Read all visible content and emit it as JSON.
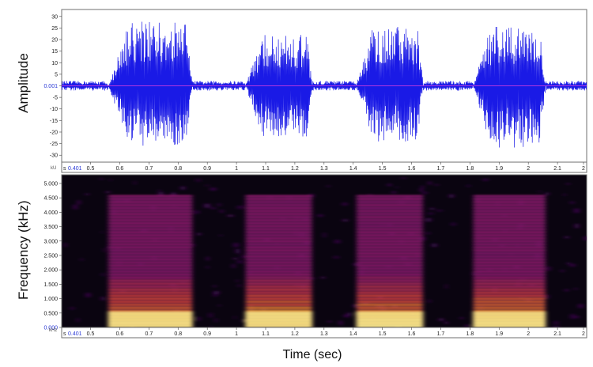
{
  "figure": {
    "top_ylabel": "Amplitude",
    "bottom_ylabel": "Frequency (kHz)",
    "xlabel": "Time (sec)",
    "top_unit": "kU",
    "bottom_unit": "kHz",
    "start_marker": "s",
    "start_time_label": "0.401"
  },
  "colors": {
    "waveform": "#1a1ae6",
    "baseline": "#e040e0",
    "frame": "#6f6f6f",
    "spectrogram_bg": "#0a0410"
  },
  "chart_data": [
    {
      "type": "line",
      "title": "",
      "ylabel": "Amplitude",
      "xlim": [
        0.401,
        2.2
      ],
      "ylim": [
        -33,
        33
      ],
      "x_ticks": [
        "0.5",
        "0.6",
        "0.7",
        "0.8",
        "0.9",
        "1",
        "1.1",
        "1.2",
        "1.3",
        "1.4",
        "1.5",
        "1.6",
        "1.7",
        "1.8",
        "1.9",
        "2",
        "2.1",
        "2"
      ],
      "y_ticks": [
        "30",
        "25",
        "20",
        "15",
        "10",
        "5",
        "0.001",
        "-5",
        "-10",
        "-15",
        "-20",
        "-25",
        "-30"
      ],
      "baseline_value": 0.001,
      "bursts": [
        {
          "start": 0.56,
          "end": 0.85,
          "peak_pos": 28,
          "peak_neg": -26
        },
        {
          "start": 1.03,
          "end": 1.26,
          "peak_pos": 22,
          "peak_neg": -22
        },
        {
          "start": 1.41,
          "end": 1.64,
          "peak_pos": 26,
          "peak_neg": -24
        },
        {
          "start": 1.81,
          "end": 2.06,
          "peak_pos": 26,
          "peak_neg": -27
        }
      ],
      "noise_level": 1.5
    },
    {
      "type": "heatmap",
      "title": "",
      "ylabel": "Frequency (kHz)",
      "xlim": [
        0.401,
        2.2
      ],
      "ylim": [
        0,
        5.3
      ],
      "x_ticks": [
        "0.5",
        "0.6",
        "0.7",
        "0.8",
        "0.9",
        "1",
        "1.1",
        "1.2",
        "1.3",
        "1.4",
        "1.5",
        "1.6",
        "1.7",
        "1.8",
        "1.9",
        "2",
        "2.1",
        "2"
      ],
      "y_ticks": [
        "5.000",
        "4.500",
        "4.000",
        "3.500",
        "3.000",
        "2.500",
        "2.000",
        "1.500",
        "1.000",
        "0.500",
        "0.000"
      ],
      "colormap": "inferno",
      "segments": [
        {
          "start": 0.56,
          "end": 0.85
        },
        {
          "start": 1.03,
          "end": 1.26
        },
        {
          "start": 1.41,
          "end": 1.64
        },
        {
          "start": 1.81,
          "end": 2.06
        }
      ]
    }
  ]
}
